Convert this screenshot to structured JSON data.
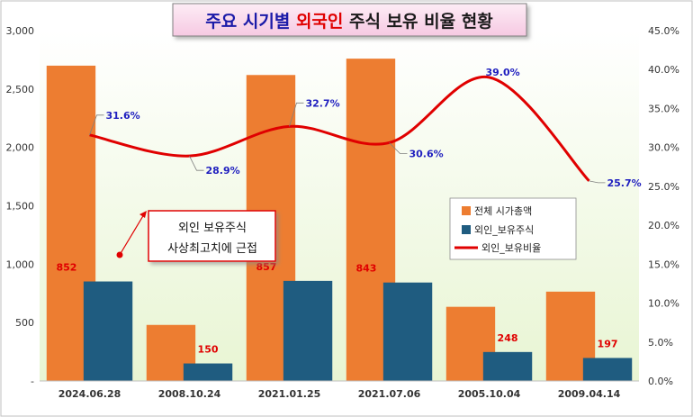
{
  "chart_data": {
    "type": "bar",
    "title": {
      "part1": "주요 시기별 ",
      "part2": "외국인",
      "part3": " 주식 보유 비율 현황"
    },
    "categories": [
      "2024.06.28",
      "2008.10.24",
      "2021.01.25",
      "2021.07.06",
      "2005.10.04",
      "2009.04.14"
    ],
    "series": [
      {
        "name": "전체 시가총액",
        "type": "bar",
        "axis": "left",
        "values": [
          2700,
          480,
          2620,
          2760,
          635,
          765
        ],
        "color": "#ED7D31"
      },
      {
        "name": "외인_보유주식",
        "type": "bar",
        "axis": "left",
        "values": [
          852,
          150,
          857,
          843,
          248,
          197
        ],
        "color": "#1F5C80"
      },
      {
        "name": "외인_보유비율",
        "type": "line",
        "axis": "right",
        "smooth": true,
        "values": [
          31.6,
          28.9,
          32.7,
          30.6,
          39.0,
          25.7
        ],
        "color": "#E00000"
      }
    ],
    "bar_labels": [
      "852",
      "150",
      "857",
      "843",
      "248",
      "197"
    ],
    "line_labels": [
      "31.6%",
      "28.9%",
      "32.7%",
      "30.6%",
      "39.0%",
      "25.7%"
    ],
    "y_left": {
      "ylim": [
        0,
        3000
      ],
      "ticks": [
        "-",
        "500",
        "1,000",
        "1,500",
        "2,000",
        "2,500",
        "3,000"
      ]
    },
    "y_right": {
      "ylim": [
        0,
        45
      ],
      "ticks": [
        "0.0%",
        "5.0%",
        "10.0%",
        "15.0%",
        "20.0%",
        "25.0%",
        "30.0%",
        "35.0%",
        "40.0%",
        "45.0%"
      ]
    },
    "annotation": {
      "line1": "외인 보유주식",
      "line2": "사상최고치에 근접"
    },
    "legend_position": "right",
    "grid": false,
    "colors": {
      "plot_bg": "#E8F5D3",
      "label_blue": "#1F1FBF",
      "label_red": "#E00000",
      "title_blue": "#1A1AA8",
      "title_red": "#E00000"
    }
  }
}
